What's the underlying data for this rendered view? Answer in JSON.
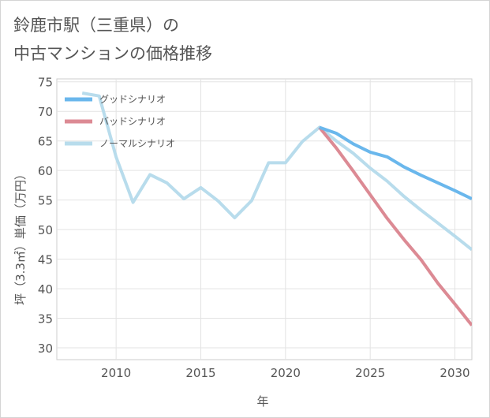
{
  "title": {
    "line1": "鈴鹿市駅（三重県）の",
    "line2": "中古マンションの価格推移"
  },
  "chart_data": {
    "type": "line",
    "title": "鈴鹿市駅（三重県）の中古マンションの価格推移",
    "xlabel": "年",
    "ylabel": "坪（3.3㎡）単価（万円）",
    "xlim": [
      2006.5,
      2031
    ],
    "ylim": [
      28,
      75.5
    ],
    "xticks": [
      2010,
      2015,
      2020,
      2025,
      2030
    ],
    "yticks": [
      30,
      35,
      40,
      45,
      50,
      55,
      60,
      65,
      70,
      75
    ],
    "grid": true,
    "legend_position": "top-left",
    "series": [
      {
        "name": "グッドシナリオ",
        "color": "#6ab7ec",
        "x": [
          2022,
          2023,
          2024,
          2025,
          2026,
          2027,
          2028,
          2029,
          2030,
          2031
        ],
        "values": [
          67.3,
          66.3,
          64.5,
          63.1,
          62.3,
          60.6,
          59.2,
          57.9,
          56.6,
          55.2
        ]
      },
      {
        "name": "バッドシナリオ",
        "color": "#dc8a94",
        "x": [
          2022,
          2023,
          2024,
          2025,
          2026,
          2027,
          2028,
          2029,
          2030,
          2031
        ],
        "values": [
          67.3,
          63.8,
          59.9,
          55.9,
          51.9,
          48.3,
          44.9,
          40.9,
          37.4,
          33.8
        ]
      },
      {
        "name": "ノーマルシナリオ",
        "color": "#b8dcec",
        "x": [
          2008,
          2009,
          2010,
          2011,
          2012,
          2013,
          2014,
          2015,
          2016,
          2017,
          2018,
          2019,
          2020,
          2021,
          2022,
          2023,
          2024,
          2025,
          2026,
          2027,
          2028,
          2029,
          2030,
          2031
        ],
        "values": [
          73.1,
          72.6,
          62.3,
          54.6,
          59.3,
          57.9,
          55.2,
          57.1,
          54.9,
          52.0,
          54.9,
          61.3,
          61.3,
          64.9,
          67.3,
          65.0,
          62.9,
          60.4,
          58.2,
          55.6,
          53.3,
          51.1,
          48.9,
          46.6
        ]
      }
    ]
  }
}
